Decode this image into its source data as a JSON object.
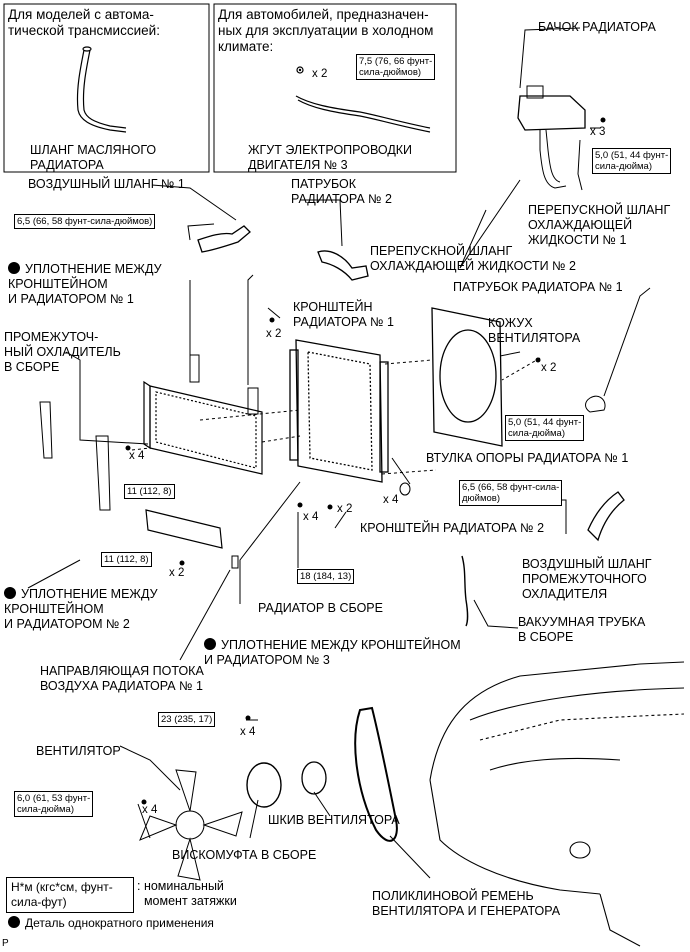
{
  "insets": {
    "automatic": {
      "title": "Для моделей с автома-\nтической трансмиссией:",
      "part_label": "ШЛАНГ МАСЛЯНОГО\nРАДИАТОРА"
    },
    "cold": {
      "title": "Для автомобилей, предназначен-\nных для эксплуатации в холодном\nклимате:",
      "torque": "7,5 (76, 66 фунт-\nсила-дюймов)",
      "count": "x 2",
      "part_label": "ЖГУТ ЭЛЕКТРОПРОВОДКИ\nДВИГАТЕЛЯ № 3"
    }
  },
  "labels": {
    "reservoir": "БАЧОК РАДИАТОРА",
    "air_hose_1": "ВОЗДУШНЫЙ ШЛАНГ № 1",
    "radiator_hose_2": "ПАТРУБОК\nРАДИАТОРА № 2",
    "bypass_hose_1": "ПЕРЕПУСКНОЙ ШЛАНГ\nОХЛАЖДАЮЩЕЙ\nЖИДКОСТИ № 1",
    "bypass_hose_2": "ПЕРЕПУСКНОЙ ШЛАНГ\nОХЛАЖДАЮЩЕЙ ЖИДКОСТИ № 2",
    "seal_1": "УПЛОТНЕНИЕ МЕЖДУ\nКРОНШТЕЙНОМ\nИ РАДИАТОРОМ № 1",
    "radiator_hose_1": "ПАТРУБОК РАДИАТОРА № 1",
    "bracket_1": "КРОНШТЕЙН\nРАДИАТОРА № 1",
    "fan_shroud": "КОЖУХ\nВЕНТИЛЯТОРА",
    "intercooler": "ПРОМЕЖУТОЧ-\nНЫЙ ОХЛАДИТЕЛЬ\nВ СБОРЕ",
    "support_cushion": "ВТУЛКА ОПОРЫ РАДИАТОРА № 1",
    "bracket_2": "КРОНШТЕЙН РАДИАТОРА № 2",
    "intercooler_air_hose": "ВОЗДУШНЫЙ ШЛАНГ\nПРОМЕЖУТОЧНОГО\nОХЛАДИТЕЛЯ",
    "seal_2": "УПЛОТНЕНИЕ МЕЖДУ\nКРОНШТЕЙНОМ\nИ РАДИАТОРОМ № 2",
    "radiator_assy": "РАДИАТОР В СБОРЕ",
    "vacuum_tube": "ВАКУУМНАЯ ТРУБКА\nВ СБОРЕ",
    "seal_3": "УПЛОТНЕНИЕ МЕЖДУ КРОНШТЕЙНОМ\nИ РАДИАТОРОМ № 3",
    "air_guide": "НАПРАВЛЯЮЩАЯ ПОТОКА\nВОЗДУХА РАДИАТОРА № 1",
    "fan": "ВЕНТИЛЯТОР",
    "fan_pulley": "ШКИВ ВЕНТИЛЯТОРА",
    "viscous_clutch": "ВИСКОМУФТА В СБОРЕ",
    "v_belt": "ПОЛИКЛИНОВОЙ РЕМЕНЬ\nВЕНТИЛЯТОРА И ГЕНЕРАТОРА"
  },
  "torques": {
    "reservoir": "5,0 (51, 44 фунт-\nсила-дюйма)",
    "air_hose_1": "6,5 (66, 58 фунт-сила-дюймов)",
    "shroud": "5,0 (51, 44 фунт-\nсила-дюйма)",
    "intercooler": "11 (112, 8)",
    "intercooler_hose": "6,5 (66, 58 фунт-сила-\nдюймов)",
    "air_guide": "11 (112, 8)",
    "radiator": "18 (184, 13)",
    "fan_clutch_nut": "23 (235, 17)",
    "fan": "6,0 (61, 53 фунт-\nсила-дюйма)"
  },
  "counts": {
    "cold_bolt": "x 2",
    "reservoir": "x 3",
    "bracket_1": "x 2",
    "shroud": "x 2",
    "intercooler": "x 4",
    "cushion": "x 4",
    "bracket_2_bolt": "x 4",
    "bracket_2_nut": "x 2",
    "air_guide": "x 2",
    "fan_nut": "x 4",
    "fan_bolt": "x 4"
  },
  "legend": {
    "torque_key": "Н*м (кгс*см, фунт-\nсила-фут)",
    "torque_desc": ": номинальный\n  момент затяжки",
    "non_reusable": "Деталь однократного применения"
  },
  "corner_mark": "P"
}
